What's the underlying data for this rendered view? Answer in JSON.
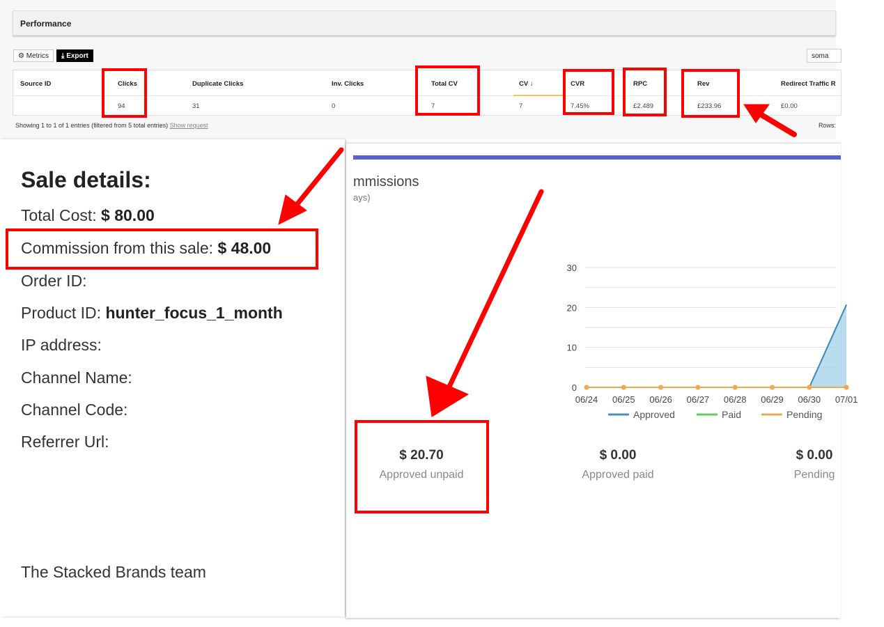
{
  "performance": {
    "title": "Performance",
    "metrics_label": "Metrics",
    "export_label": "Export",
    "search_value": "soma",
    "columns": [
      "Source ID",
      "Clicks",
      "Duplicate Clicks",
      "Inv. Clicks",
      "Total CV",
      "CV ↓",
      "CVR",
      "RPC",
      "Rev",
      "Redirect Traffic R"
    ],
    "row": [
      "",
      "94",
      "31",
      "0",
      "7",
      "7",
      "7.45%",
      "£2.489",
      "£233.96",
      "£0.00"
    ],
    "footer": "Showing 1 to 1 of 1 entries (filtered from 5 total entries)",
    "show_request": "Show request",
    "rows_label": "Rows:"
  },
  "sale": {
    "heading": "Sale details:",
    "total_cost_label": "Total Cost:",
    "total_cost": "$ 80.00",
    "commission_label": "Commission from this sale:",
    "commission": "$ 48.00",
    "order_id_label": "Order ID:",
    "product_id_label": "Product ID:",
    "product_id": "hunter_focus_1_month",
    "ip_label": "IP address:",
    "channel_name_label": "Channel Name:",
    "channel_code_label": "Channel Code:",
    "referrer_label": "Referrer Url:",
    "signoff": "The Stacked Brands team"
  },
  "commissions": {
    "title": "mmissions",
    "subtitle": "ays)",
    "summary": [
      {
        "amount": "$ 20.70",
        "label": "Approved unpaid"
      },
      {
        "amount": "$ 0.00",
        "label": "Approved paid"
      },
      {
        "amount": "$ 0.00",
        "label": "Pending"
      }
    ]
  },
  "colors": {
    "accent": "#5a5fd6",
    "highlight": "#ff0000",
    "approved": "#4a8fbf",
    "paid": "#5ccf5c",
    "pending": "#f0a850"
  },
  "chart_data": {
    "type": "area",
    "x": [
      "06/24",
      "06/25",
      "06/26",
      "06/27",
      "06/28",
      "06/29",
      "06/30",
      "07/01"
    ],
    "ylim": [
      0,
      30
    ],
    "yticks": [
      0,
      10,
      20,
      30
    ],
    "grid": true,
    "legend": "bottom",
    "series": [
      {
        "name": "Approved",
        "values": [
          0,
          0,
          0,
          0,
          0,
          0,
          0,
          20.7
        ]
      },
      {
        "name": "Paid",
        "values": [
          0,
          0,
          0,
          0,
          0,
          0,
          0,
          0
        ]
      },
      {
        "name": "Pending",
        "values": [
          0,
          0,
          0,
          0,
          0,
          0,
          0,
          0
        ]
      }
    ]
  }
}
